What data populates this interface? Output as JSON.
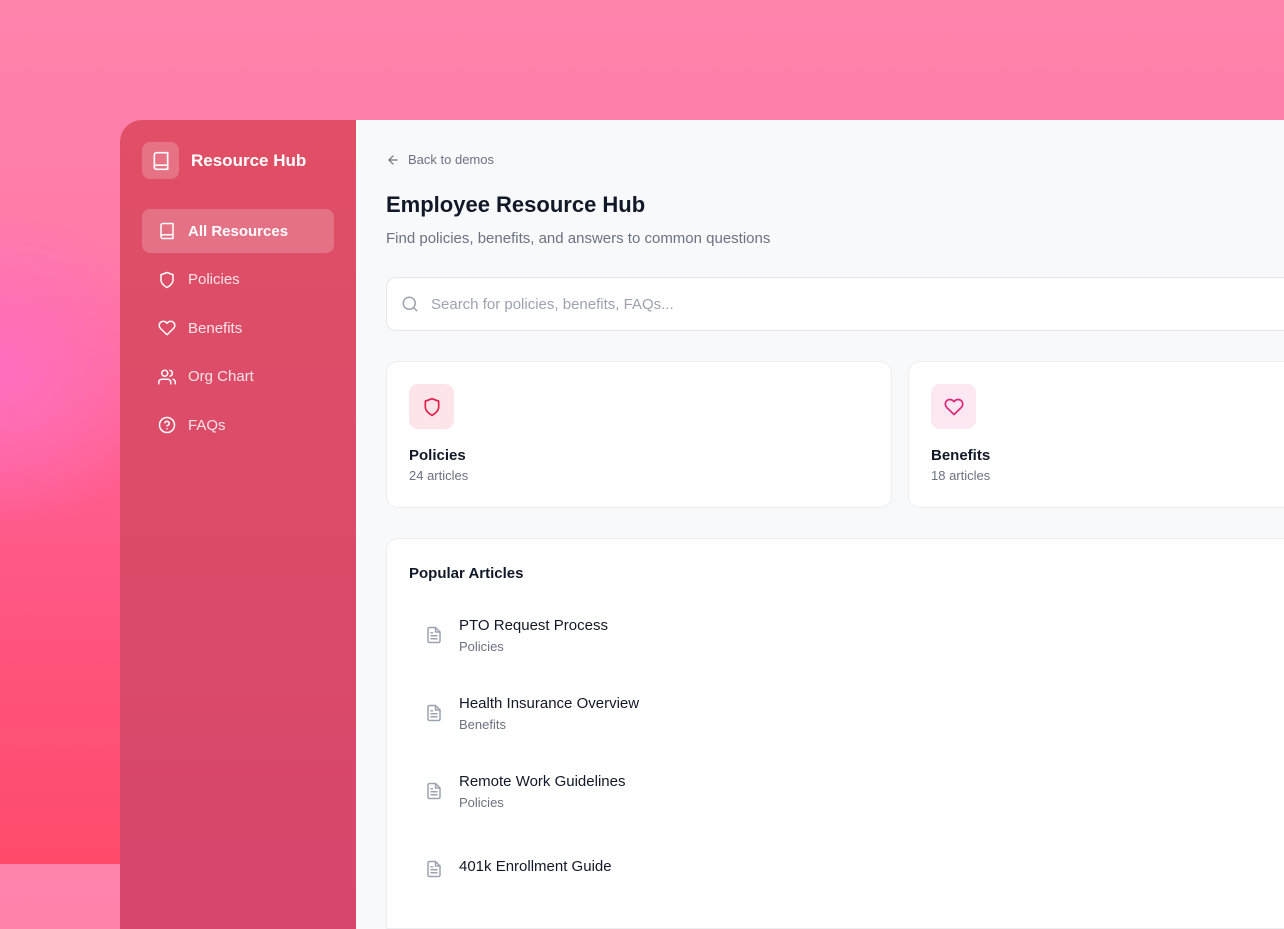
{
  "sidebar": {
    "brand": "Resource Hub",
    "items": [
      {
        "label": "All Resources",
        "icon": "book-icon",
        "active": true
      },
      {
        "label": "Policies",
        "icon": "shield-icon"
      },
      {
        "label": "Benefits",
        "icon": "heart-icon"
      },
      {
        "label": "Org Chart",
        "icon": "users-icon"
      },
      {
        "label": "FAQs",
        "icon": "help-circle-icon"
      }
    ]
  },
  "header": {
    "back": "Back to demos",
    "title": "Employee Resource Hub",
    "subtitle": "Find policies, benefits, and answers to common questions"
  },
  "search": {
    "placeholder": "Search for policies, benefits, FAQs...",
    "value": ""
  },
  "cards": [
    {
      "title": "Policies",
      "count": "24 articles",
      "icon": "shield-icon",
      "color": "#e11d48",
      "bg": "#fde4e8"
    },
    {
      "title": "Benefits",
      "count": "18 articles",
      "icon": "heart-icon",
      "color": "#db2777",
      "bg": "#fce7f3"
    }
  ],
  "popular": {
    "title": "Popular Articles",
    "articles": [
      {
        "title": "PTO Request Process",
        "category": "Policies"
      },
      {
        "title": "Health Insurance Overview",
        "category": "Benefits"
      },
      {
        "title": "Remote Work Guidelines",
        "category": "Policies"
      },
      {
        "title": "401k Enrollment Guide",
        "category": ""
      }
    ]
  }
}
